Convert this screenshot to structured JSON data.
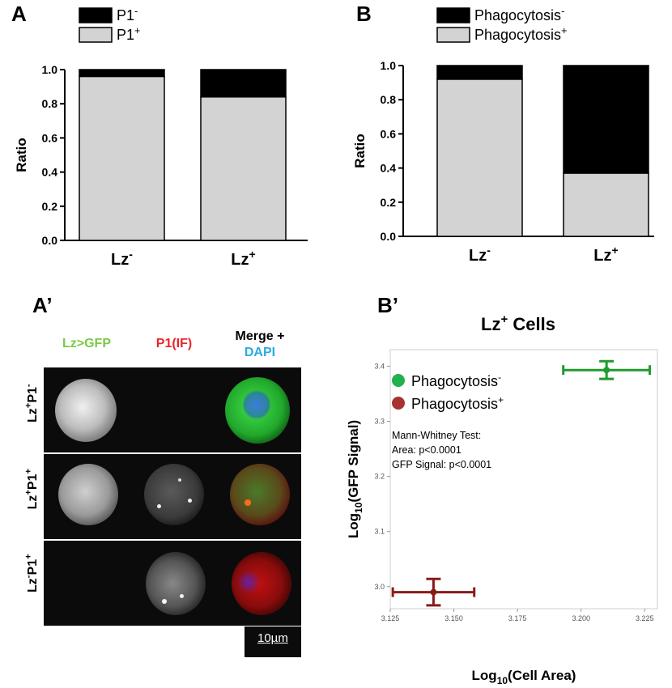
{
  "panels": {
    "A": "A",
    "B": "B",
    "A_prime": "A’",
    "B_prime": "B’"
  },
  "chart_data": [
    {
      "id": "A",
      "type": "bar",
      "stacked": true,
      "categories": [
        "Lz-",
        "Lz+"
      ],
      "series": [
        {
          "name": "P1+",
          "values": [
            0.96,
            0.84
          ],
          "color": "#d3d3d3"
        },
        {
          "name": "P1-",
          "values": [
            0.04,
            0.16
          ],
          "color": "#000000"
        }
      ],
      "legend": [
        {
          "base": "P1",
          "sup": "-",
          "color": "#000000"
        },
        {
          "base": "P1",
          "sup": "+",
          "color": "#d3d3d3"
        }
      ],
      "category_labels": [
        {
          "base": "Lz",
          "sup": "-"
        },
        {
          "base": "Lz",
          "sup": "+"
        }
      ],
      "ylabel": "Ratio",
      "ylim": [
        0,
        1.0
      ],
      "yticks": [
        "0.0",
        "0.2",
        "0.4",
        "0.6",
        "0.8",
        "1.0"
      ],
      "legend_position": "top-left"
    },
    {
      "id": "B",
      "type": "bar",
      "stacked": true,
      "categories": [
        "Lz-",
        "Lz+"
      ],
      "series": [
        {
          "name": "Phagocytosis+",
          "values": [
            0.92,
            0.37
          ],
          "color": "#d3d3d3"
        },
        {
          "name": "Phagocytosis-",
          "values": [
            0.08,
            0.63
          ],
          "color": "#000000"
        }
      ],
      "legend": [
        {
          "base": "Phagocytosis",
          "sup": "-",
          "color": "#000000"
        },
        {
          "base": "Phagocytosis",
          "sup": "+",
          "color": "#d3d3d3"
        }
      ],
      "category_labels": [
        {
          "base": "Lz",
          "sup": "-"
        },
        {
          "base": "Lz",
          "sup": "+"
        }
      ],
      "ylabel": "Ratio",
      "ylim": [
        0,
        1.0
      ],
      "yticks": [
        "0.0",
        "0.2",
        "0.4",
        "0.6",
        "0.8",
        "1.0"
      ],
      "legend_position": "top-left"
    },
    {
      "id": "B_prime",
      "type": "scatter",
      "title": {
        "base": "Lz",
        "sup": "+",
        "rest": " Cells"
      },
      "xlabel": {
        "pre": "Log",
        "sub": "10",
        "post": "(Cell Area)"
      },
      "ylabel": {
        "pre": "Log",
        "sub": "10",
        "post": "(GFP Signal)"
      },
      "xlim": [
        3.125,
        3.23
      ],
      "ylim": [
        2.96,
        3.43
      ],
      "xticks": [
        "3.125",
        "3.150",
        "3.175",
        "3.200",
        "3.225"
      ],
      "yticks": [
        "3.0",
        "3.1",
        "3.2",
        "3.3",
        "3.4"
      ],
      "points": [
        {
          "name": "Phagocytosis-",
          "x": 3.21,
          "y": 3.393,
          "xerr": 0.017,
          "yerr": 0.016,
          "color": "#1f9a2e"
        },
        {
          "name": "Phagocytosis+",
          "x": 3.142,
          "y": 2.99,
          "xerr": 0.016,
          "yerr": 0.024,
          "color": "#8b1a1a"
        }
      ],
      "legend": [
        {
          "base": "Phagocytosis",
          "sup": "-",
          "color": "#22b14c"
        },
        {
          "base": "Phagocytosis",
          "sup": "+",
          "color": "#a83232"
        }
      ],
      "annotation": [
        "Mann-Whitney Test:",
        "Area: p<0.0001",
        "GFP Signal: p<0.0001"
      ],
      "legend_position": "top-left"
    }
  ],
  "micrograph": {
    "columns": [
      {
        "text": "Lz>GFP",
        "color": "#7ac943"
      },
      {
        "text": "P1(IF)",
        "color": "#e8262b"
      },
      {
        "text": "Merge +",
        "color": "#000000"
      },
      {
        "text": "DAPI",
        "color": "#29abe2"
      }
    ],
    "rows": [
      {
        "base1": "Lz",
        "sup1": "+",
        "base2": "P1",
        "sup2": "-"
      },
      {
        "base1": "Lz",
        "sup1": "+",
        "base2": "P1",
        "sup2": "+"
      },
      {
        "base1": "Lz",
        "sup1": "-",
        "base2": "P1",
        "sup2": "+"
      }
    ],
    "scale_bar": "10µm"
  }
}
